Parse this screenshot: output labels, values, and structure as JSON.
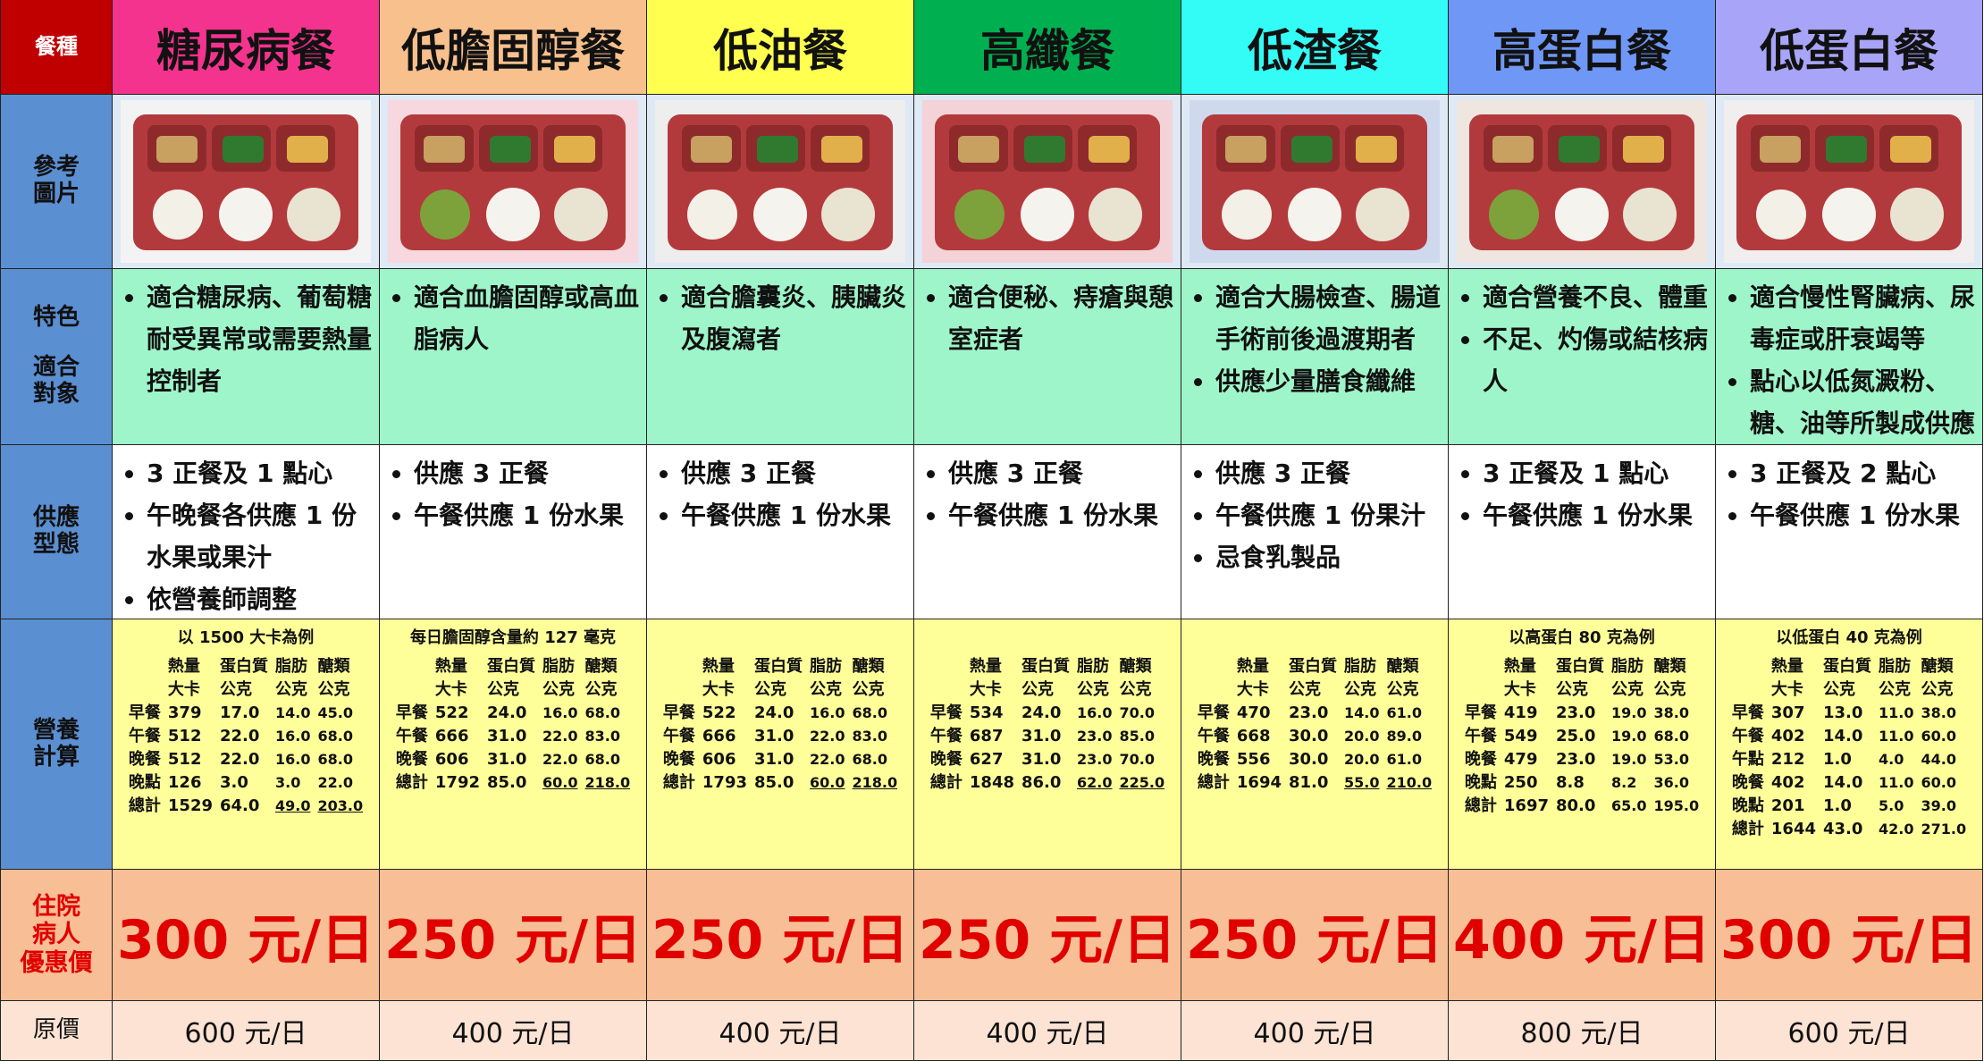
{
  "header": {
    "label": "餐種",
    "columns": [
      "糖尿病餐",
      "低膽固醇餐",
      "低油餐",
      "高纖餐",
      "低渣餐",
      "高蛋白餐",
      "低蛋白餐"
    ]
  },
  "picture_row": {
    "label": [
      "參考",
      "圖片"
    ]
  },
  "features_row": {
    "label": [
      "特色",
      "適合",
      "對象"
    ],
    "cells": [
      [
        "適合糖尿病、葡萄糖耐受異常或需要熱量控制者"
      ],
      [
        "適合血膽固醇或高血脂病人"
      ],
      [
        "適合膽囊炎、胰臟炎及腹瀉者"
      ],
      [
        "適合便秘、痔瘡與憩室症者"
      ],
      [
        "適合大腸檢查、腸道手術前後過渡期者",
        "供應少量膳食纖維"
      ],
      [
        "適合營養不良、體重",
        "不足、灼傷或結核病人"
      ],
      [
        "適合慢性腎臟病、尿毒症或肝衰竭等",
        "點心以低氮澱粉、糖、油等所製成供應"
      ]
    ]
  },
  "serving_row": {
    "label": [
      "供應",
      "型態"
    ],
    "cells": [
      [
        "3 正餐及 1 點心",
        "午晚餐各供應 1 份水果或果汁",
        "依營養師調整"
      ],
      [
        "供應 3 正餐",
        "午餐供應 1 份水果"
      ],
      [
        "供應 3 正餐",
        "午餐供應 1 份水果"
      ],
      [
        "供應 3 正餐",
        "午餐供應 1 份水果"
      ],
      [
        "供應 3 正餐",
        "午餐供應 1 份果汁",
        "忌食乳製品"
      ],
      [
        "3 正餐及 1 點心",
        "午餐供應 1 份水果"
      ],
      [
        "3 正餐及 2 點心",
        "午餐供應 1 份水果"
      ]
    ]
  },
  "nutrition_row": {
    "label": [
      "營養",
      "計算"
    ],
    "columns": [
      "熱量",
      "蛋白質",
      "脂肪",
      "醣類"
    ],
    "units": [
      "大卡",
      "公克",
      "公克",
      "公克"
    ],
    "cells": [
      {
        "note": "以 1500 大卡為例",
        "rows": [
          {
            "meal": "早餐",
            "values": [
              "379",
              "17.0",
              "14.0",
              "45.0"
            ]
          },
          {
            "meal": "午餐",
            "values": [
              "512",
              "22.0",
              "16.0",
              "68.0"
            ]
          },
          {
            "meal": "晚餐",
            "values": [
              "512",
              "22.0",
              "16.0",
              "68.0"
            ]
          },
          {
            "meal": "晚點",
            "values": [
              "126",
              "3.0",
              "3.0",
              "22.0"
            ]
          },
          {
            "meal": "總計",
            "values": [
              "1529",
              "64.0",
              "49.0",
              "203.0"
            ]
          }
        ]
      },
      {
        "note": "每日膽固醇含量約 127 毫克",
        "rows": [
          {
            "meal": "早餐",
            "values": [
              "522",
              "24.0",
              "16.0",
              "68.0"
            ]
          },
          {
            "meal": "午餐",
            "values": [
              "666",
              "31.0",
              "22.0",
              "83.0"
            ]
          },
          {
            "meal": "晚餐",
            "values": [
              "606",
              "31.0",
              "22.0",
              "68.0"
            ]
          },
          {
            "meal": "總計",
            "values": [
              "1792",
              "85.0",
              "60.0",
              "218.0"
            ]
          }
        ]
      },
      {
        "rows": [
          {
            "meal": "早餐",
            "values": [
              "522",
              "24.0",
              "16.0",
              "68.0"
            ]
          },
          {
            "meal": "午餐",
            "values": [
              "666",
              "31.0",
              "22.0",
              "83.0"
            ]
          },
          {
            "meal": "晚餐",
            "values": [
              "606",
              "31.0",
              "22.0",
              "68.0"
            ]
          },
          {
            "meal": "總計",
            "values": [
              "1793",
              "85.0",
              "60.0",
              "218.0"
            ]
          }
        ]
      },
      {
        "rows": [
          {
            "meal": "早餐",
            "values": [
              "534",
              "24.0",
              "16.0",
              "70.0"
            ]
          },
          {
            "meal": "午餐",
            "values": [
              "687",
              "31.0",
              "23.0",
              "85.0"
            ]
          },
          {
            "meal": "晚餐",
            "values": [
              "627",
              "31.0",
              "23.0",
              "70.0"
            ]
          },
          {
            "meal": "總計",
            "values": [
              "1848",
              "86.0",
              "62.0",
              "225.0"
            ]
          }
        ]
      },
      {
        "rows": [
          {
            "meal": "早餐",
            "values": [
              "470",
              "23.0",
              "14.0",
              "61.0"
            ]
          },
          {
            "meal": "午餐",
            "values": [
              "668",
              "30.0",
              "20.0",
              "89.0"
            ]
          },
          {
            "meal": "晚餐",
            "values": [
              "556",
              "30.0",
              "20.0",
              "61.0"
            ]
          },
          {
            "meal": "總計",
            "values": [
              "1694",
              "81.0",
              "55.0",
              "210.0"
            ]
          }
        ]
      },
      {
        "note": "以高蛋白 80 克為例",
        "rows": [
          {
            "meal": "早餐",
            "values": [
              "419",
              "23.0",
              "19.0",
              "38.0"
            ]
          },
          {
            "meal": "午餐",
            "values": [
              "549",
              "25.0",
              "19.0",
              "68.0"
            ]
          },
          {
            "meal": "晚餐",
            "values": [
              "479",
              "23.0",
              "19.0",
              "53.0"
            ]
          },
          {
            "meal": "晚點",
            "values": [
              "250",
              "8.8",
              "8.2",
              "36.0"
            ]
          },
          {
            "meal": "總計",
            "values": [
              "1697",
              "80.0",
              "65.0",
              "195.0"
            ]
          }
        ]
      },
      {
        "note": "以低蛋白 40 克為例",
        "rows": [
          {
            "meal": "早餐",
            "values": [
              "307",
              "13.0",
              "11.0",
              "38.0"
            ]
          },
          {
            "meal": "午餐",
            "values": [
              "402",
              "14.0",
              "11.0",
              "60.0"
            ]
          },
          {
            "meal": "午點",
            "values": [
              "212",
              "1.0",
              "4.0",
              "44.0"
            ]
          },
          {
            "meal": "晚餐",
            "values": [
              "402",
              "14.0",
              "11.0",
              "60.0"
            ]
          },
          {
            "meal": "晚點",
            "values": [
              "201",
              "1.0",
              "5.0",
              "39.0"
            ]
          },
          {
            "meal": "總計",
            "values": [
              "1644",
              "43.0",
              "42.0",
              "271.0"
            ]
          }
        ]
      }
    ]
  },
  "price_row": {
    "label": [
      "住院",
      "病人",
      "優惠價"
    ],
    "cells": [
      "300 元/日",
      "250 元/日",
      "250 元/日",
      "250 元/日",
      "250 元/日",
      "400 元/日",
      "300 元/日"
    ]
  },
  "original_price_row": {
    "label": "原價",
    "cells": [
      "600 元/日",
      "400 元/日",
      "400 元/日",
      "400 元/日",
      "400 元/日",
      "800 元/日",
      "600 元/日"
    ]
  }
}
